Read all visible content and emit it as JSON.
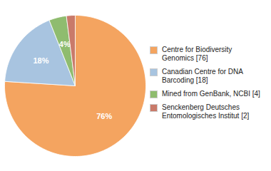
{
  "chart_data": {
    "type": "pie",
    "categories": [
      "Centre for Biodiversity\nGenomics [76]",
      "Canadian Centre for DNA\nBarcoding [18]",
      "Mined from GenBank, NCBI [4]",
      "Senckenberg Deutsches\nEntomologisches Institut [2]"
    ],
    "values": [
      76,
      18,
      4,
      2
    ],
    "value_labels": [
      "76%",
      "18%",
      "4%",
      null
    ],
    "colors": [
      "#F4A460",
      "#A8C4E0",
      "#8FBC6F",
      "#C97A6A"
    ],
    "data_labels": true,
    "legend": "right"
  }
}
